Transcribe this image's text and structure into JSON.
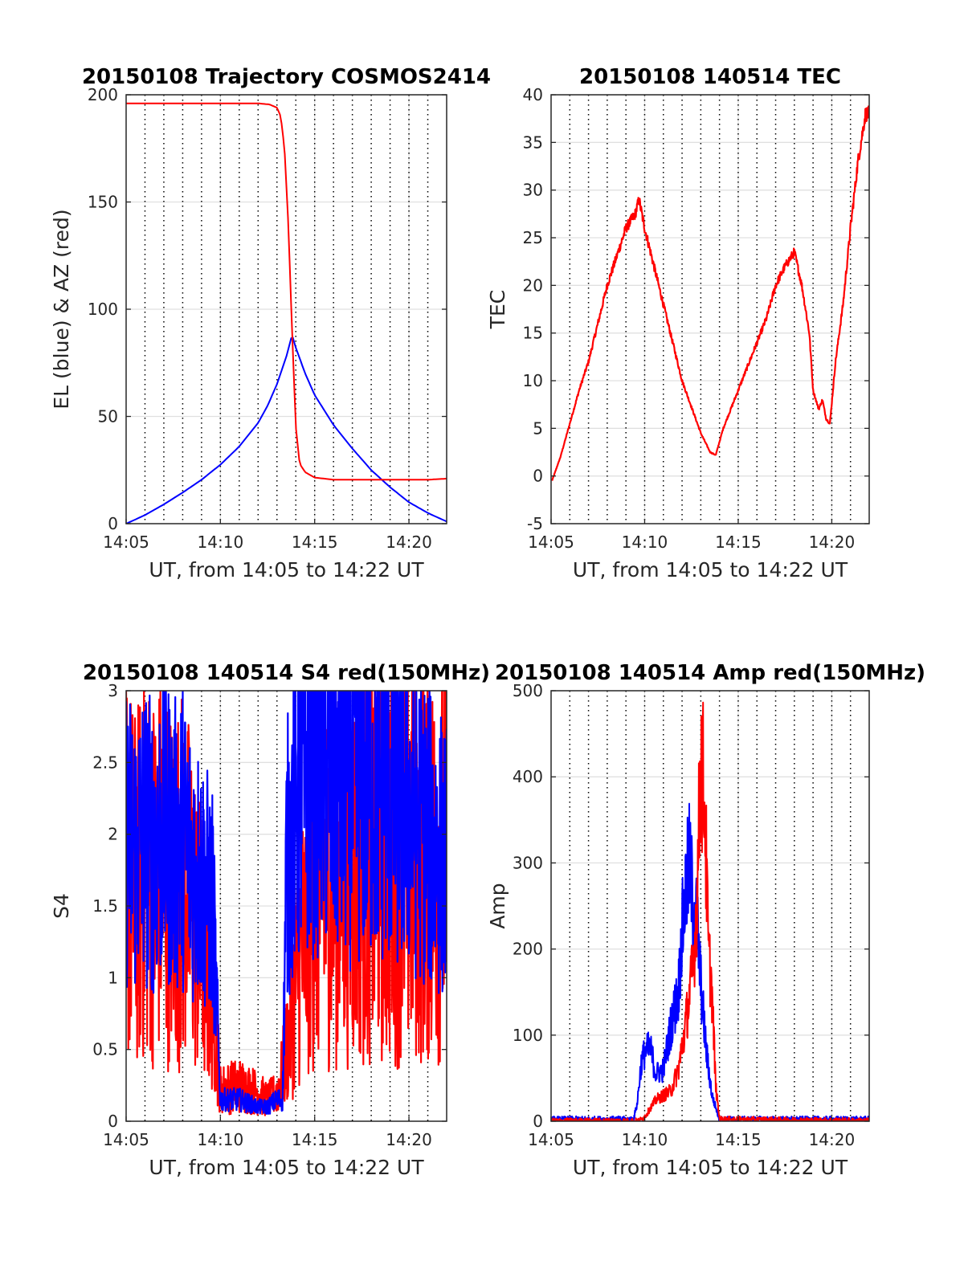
{
  "figure": {
    "background": "#ffffff",
    "grid_color": "#e0e0e0",
    "axis_color": "#262626",
    "minute_marker_color": "#000000"
  },
  "chart_data": [
    {
      "id": "trajectory",
      "type": "line",
      "title": "20150108 Trajectory COSMOS2414",
      "xlabel": "UT, from 14:05 to 14:22 UT",
      "ylabel": "EL (blue) & AZ (red)",
      "x_unit": "minutes after 14:05 UT",
      "xlim": [
        0,
        17
      ],
      "ylim": [
        0,
        200
      ],
      "xticks": [
        0,
        5,
        10,
        15
      ],
      "xtick_labels": [
        "14:05",
        "14:10",
        "14:15",
        "14:20"
      ],
      "yticks": [
        0,
        50,
        100,
        150,
        200
      ],
      "ytick_labels": [
        "0",
        "50",
        "100",
        "150",
        "200"
      ],
      "minute_markers": [
        1,
        2,
        3,
        4,
        5,
        6,
        7,
        8,
        9,
        10,
        11,
        12,
        13,
        14,
        15,
        16
      ],
      "grid": true,
      "series": [
        {
          "name": "EL",
          "color": "#0000ff",
          "noise": 0,
          "x": [
            0,
            1,
            2,
            3,
            4,
            5,
            6,
            7,
            7.5,
            8,
            8.5,
            8.8,
            9,
            9.5,
            10,
            11,
            12,
            13,
            14,
            15,
            16,
            17
          ],
          "y": [
            0,
            4,
            9,
            14.5,
            20.5,
            27.5,
            36,
            47,
            55,
            65,
            78,
            88,
            82,
            70,
            60,
            46,
            35,
            25,
            17,
            10,
            5,
            1
          ]
        },
        {
          "name": "AZ",
          "color": "#ff0000",
          "noise": 0,
          "x": [
            0,
            3,
            6,
            7,
            7.6,
            8.0,
            8.2,
            8.4,
            8.6,
            8.8,
            9.0,
            9.2,
            9.5,
            10,
            11,
            12,
            13,
            14,
            15,
            16,
            17
          ],
          "y": [
            196,
            196,
            196,
            196,
            195.5,
            194,
            190,
            175,
            140,
            90,
            45,
            28,
            24,
            21.5,
            20.5,
            20.5,
            20.5,
            20.5,
            20.5,
            20.5,
            21
          ]
        }
      ]
    },
    {
      "id": "tec",
      "type": "line",
      "title": "20150108 140514 TEC",
      "xlabel": "UT, from 14:05 to 14:22 UT",
      "ylabel": "TEC",
      "x_unit": "minutes after 14:05 UT",
      "xlim": [
        0,
        17
      ],
      "ylim": [
        -5,
        40
      ],
      "xticks": [
        0,
        5,
        10,
        15
      ],
      "xtick_labels": [
        "14:05",
        "14:10",
        "14:15",
        "14:20"
      ],
      "yticks": [
        -5,
        0,
        5,
        10,
        15,
        20,
        25,
        30,
        35,
        40
      ],
      "ytick_labels": [
        "-5",
        "0",
        "5",
        "10",
        "15",
        "20",
        "25",
        "30",
        "35",
        "40"
      ],
      "minute_markers": [
        1,
        2,
        3,
        4,
        5,
        6,
        7,
        8,
        9,
        10,
        11,
        12,
        13,
        14,
        15,
        16
      ],
      "grid": true,
      "series": [
        {
          "name": "TEC",
          "color": "#ff0000",
          "noise": 0.35,
          "x": [
            0.05,
            0.5,
            1,
            1.5,
            2,
            2.5,
            3,
            3.5,
            4,
            4.5,
            4.7,
            5,
            6,
            7,
            8,
            8.5,
            8.8,
            9.2,
            10,
            11,
            11.5,
            12,
            12.5,
            13,
            13.4,
            13.8,
            14.0,
            14.3,
            14.5,
            14.7,
            14.9,
            15.2,
            15.6,
            16,
            16.4,
            16.8,
            17
          ],
          "y": [
            -0.5,
            2,
            5.5,
            9,
            12,
            16,
            20,
            23,
            26,
            27.5,
            29,
            26,
            18,
            10,
            4.5,
            2.5,
            2.2,
            5,
            9,
            14,
            16.5,
            20,
            22,
            23.5,
            20,
            15,
            9,
            7,
            8,
            6,
            5.5,
            12,
            18,
            26,
            33,
            38,
            38
          ]
        }
      ]
    },
    {
      "id": "s4",
      "type": "line",
      "title": "20150108 140514 S4 red(150MHz)",
      "xlabel": "UT, from 14:05 to 14:22 UT",
      "ylabel": "S4",
      "x_unit": "minutes after 14:05 UT",
      "xlim": [
        0,
        17
      ],
      "ylim": [
        0,
        3
      ],
      "xticks": [
        0,
        5,
        10,
        15
      ],
      "xtick_labels": [
        "14:05",
        "14:10",
        "14:15",
        "14:20"
      ],
      "yticks": [
        0,
        0.5,
        1,
        1.5,
        2,
        2.5,
        3
      ],
      "ytick_labels": [
        "0",
        "0.5",
        "1",
        "1.5",
        "2",
        "2.5",
        "3"
      ],
      "minute_markers": [
        1,
        2,
        3,
        4,
        5,
        6,
        7,
        8,
        9,
        10,
        11,
        12,
        13,
        14,
        15,
        16
      ],
      "grid": true,
      "series": [
        {
          "name": "S4 red",
          "color": "#ff0000",
          "noise": 0.8,
          "x": [
            0,
            0.5,
            1,
            1.5,
            2,
            2.5,
            3,
            3.5,
            4,
            4.3,
            4.6,
            5,
            6,
            7,
            7.5,
            8,
            8.3,
            8.5,
            8.8,
            9,
            9.5,
            10,
            11,
            12,
            13,
            14,
            15,
            16,
            17
          ],
          "y": [
            1.8,
            1.6,
            1.8,
            1.7,
            1.8,
            1.6,
            1.7,
            1.5,
            1.2,
            1.0,
            0.9,
            0.22,
            0.25,
            0.2,
            0.15,
            0.2,
            0.35,
            0.5,
            0.7,
            1.0,
            1.3,
            1.6,
            1.7,
            1.8,
            1.8,
            1.8,
            1.8,
            1.8,
            1.8
          ]
        },
        {
          "name": "S4 blue",
          "color": "#0000ff",
          "noise": 0.55,
          "x": [
            0,
            0.5,
            1,
            1.5,
            2,
            2.5,
            3,
            3.5,
            4,
            4.3,
            4.6,
            5,
            6,
            7,
            7.5,
            8,
            8.3,
            8.5,
            8.8,
            9,
            9.5,
            10,
            11,
            12,
            13,
            14,
            15,
            16,
            17
          ],
          "y": [
            2.0,
            1.9,
            2.0,
            1.9,
            2.1,
            1.9,
            2.0,
            1.8,
            1.7,
            1.6,
            1.5,
            0.15,
            0.15,
            0.1,
            0.1,
            0.15,
            0.15,
            1.8,
            2.0,
            2.2,
            2.4,
            2.5,
            2.4,
            2.3,
            2.4,
            2.3,
            2.2,
            2.0,
            1.8
          ]
        }
      ]
    },
    {
      "id": "amp",
      "type": "line",
      "title": "20150108 140514 Amp red(150MHz)",
      "xlabel": "UT, from 14:05 to 14:22 UT",
      "ylabel": "Amp",
      "x_unit": "minutes after 14:05 UT",
      "xlim": [
        0,
        17
      ],
      "ylim": [
        0,
        500
      ],
      "xticks": [
        0,
        5,
        10,
        15
      ],
      "xtick_labels": [
        "14:05",
        "14:10",
        "14:15",
        "14:20"
      ],
      "yticks": [
        0,
        100,
        200,
        300,
        400,
        500
      ],
      "ytick_labels": [
        "0",
        "100",
        "200",
        "300",
        "400",
        "500"
      ],
      "minute_markers": [
        1,
        2,
        3,
        4,
        5,
        6,
        7,
        8,
        9,
        10,
        11,
        12,
        13,
        14,
        15,
        16
      ],
      "grid": true,
      "series": [
        {
          "name": "Amp blue",
          "color": "#0000ff",
          "noise": 0.25,
          "x": [
            0,
            4.4,
            4.6,
            4.8,
            5.0,
            5.3,
            5.6,
            6.0,
            6.4,
            6.8,
            7.0,
            7.2,
            7.4,
            7.6,
            7.8,
            8.0,
            8.3,
            8.6,
            9,
            17
          ],
          "y": [
            2,
            2,
            20,
            65,
            80,
            85,
            55,
            60,
            110,
            150,
            220,
            270,
            300,
            250,
            230,
            160,
            80,
            30,
            2,
            2
          ]
        },
        {
          "name": "Amp red",
          "color": "#ff0000",
          "noise": 0.25,
          "x": [
            0,
            4.7,
            5.0,
            5.3,
            5.6,
            6.0,
            6.4,
            6.8,
            7.1,
            7.3,
            7.6,
            7.8,
            8.0,
            8.2,
            8.4,
            8.6,
            8.8,
            9.0,
            17
          ],
          "y": [
            0,
            0,
            5,
            15,
            25,
            30,
            35,
            60,
            100,
            130,
            180,
            260,
            420,
            380,
            200,
            150,
            40,
            2,
            0
          ]
        }
      ]
    }
  ]
}
